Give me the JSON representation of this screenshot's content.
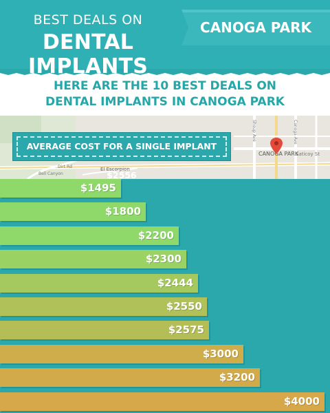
{
  "header": {
    "line1": "BEST DEALS ON",
    "line2": "DENTAL IMPLANTS",
    "location_badge": "CANOGA PARK"
  },
  "banner": {
    "line1": "HERE ARE THE 10 BEST DEALS ON",
    "line2": "DENTAL IMPLANTS IN CANOGA PARK"
  },
  "map": {
    "labels": [
      "CANOGA PARK",
      "Saticoy St",
      "Shoup Ave",
      "Canoga Ave",
      "El Escorpion",
      "Bell Canyon",
      "Dirt Rd"
    ],
    "pin_icon": "map-pin-icon"
  },
  "average": {
    "text": "AVERAGE COST FOR A SINGLE IMPLANT $2556"
  },
  "colors": {
    "background": "#2aa8ac",
    "ribbon": "#2fb0b4",
    "banner_text": "#25a6a7",
    "pin": "#e24b3b"
  },
  "chart_data": {
    "type": "bar",
    "orientation": "horizontal",
    "values": [
      1495,
      1800,
      2200,
      2300,
      2444,
      2550,
      2575,
      3000,
      3200,
      4000
    ],
    "labels": [
      "$1495",
      "$1800",
      "$2200",
      "$2300",
      "$2444",
      "$2550",
      "$2575",
      "$3000",
      "$3200",
      "$4000"
    ],
    "bar_colors": [
      "#8ed96a",
      "#8ed96a",
      "#8ed96a",
      "#9ad264",
      "#a5c95e",
      "#b0c15a",
      "#b5bd57",
      "#d0ad4b",
      "#d3aa4a",
      "#d6a84a"
    ],
    "title": "",
    "xlabel": "",
    "ylabel": "",
    "xlim": [
      0,
      4000
    ],
    "grid": false,
    "legend": "none"
  }
}
